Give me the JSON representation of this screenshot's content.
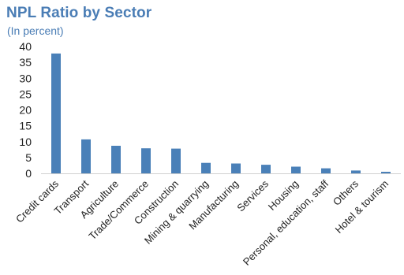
{
  "chart_data": {
    "type": "bar",
    "title": "NPL Ratio by Sector",
    "subtitle": "(In percent)",
    "categories": [
      "Credit cards",
      "Transport",
      "Agriculture",
      "Trade/Commerce",
      "Construction",
      "Mining & quarrying",
      "Manufacturing",
      "Services",
      "Housing",
      "Personal, education, staff",
      "Others",
      "Hotel & tourism"
    ],
    "values": [
      37.8,
      10.7,
      8.7,
      7.9,
      7.8,
      3.3,
      3.1,
      2.7,
      2.1,
      1.6,
      0.9,
      0.5
    ],
    "ylim": [
      0,
      40
    ],
    "yticks": [
      0,
      5,
      10,
      15,
      20,
      25,
      30,
      35,
      40
    ],
    "grid": false,
    "legend": "none",
    "bar_color": "#4a80b8",
    "text_color": "#222222",
    "title_color": "#4a7db5",
    "axis_color": "#d0d0d0"
  }
}
